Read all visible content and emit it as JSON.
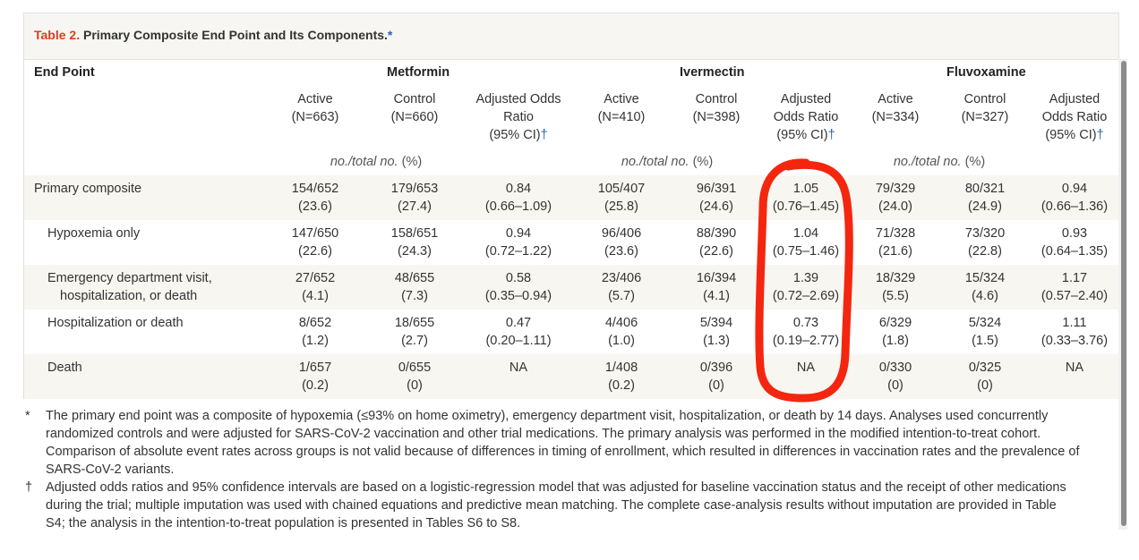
{
  "table": {
    "title_number": "Table 2.",
    "title_text": "Primary Composite End Point and Its Components.",
    "title_mark": "*",
    "endpoint_header": "End Point",
    "groups": [
      "Metformin",
      "Ivermectin",
      "Fluvoxamine"
    ],
    "subheaders": [
      [
        "Active",
        "(N=663)"
      ],
      [
        "Control",
        "(N=660)"
      ],
      [
        "Adjusted Odds",
        "Ratio",
        "(95% CI)"
      ],
      [
        "Active",
        "(N=410)"
      ],
      [
        "Control",
        "(N=398)"
      ],
      [
        "Adjusted",
        "Odds Ratio",
        "(95% CI)"
      ],
      [
        "Active",
        "(N=334)"
      ],
      [
        "Control",
        "(N=327)"
      ],
      [
        "Adjusted",
        "Odds Ratio",
        "(95% CI)"
      ]
    ],
    "dagger": "†",
    "units_label": "no./total no.",
    "units_pct": "(%)",
    "rows": [
      {
        "label": [
          "Primary composite"
        ],
        "cells": [
          [
            "154/652",
            "(23.6)"
          ],
          [
            "179/653",
            "(27.4)"
          ],
          [
            "0.84",
            "(0.66–1.09)"
          ],
          [
            "105/407",
            "(25.8)"
          ],
          [
            "96/391",
            "(24.6)"
          ],
          [
            "1.05",
            "(0.76–1.45)"
          ],
          [
            "79/329",
            "(24.0)"
          ],
          [
            "80/321",
            "(24.9)"
          ],
          [
            "0.94",
            "(0.66–1.36)"
          ]
        ]
      },
      {
        "label": [
          "Hypoxemia only"
        ],
        "cells": [
          [
            "147/650",
            "(22.6)"
          ],
          [
            "158/651",
            "(24.3)"
          ],
          [
            "0.94",
            "(0.72–1.22)"
          ],
          [
            "96/406",
            "(23.6)"
          ],
          [
            "88/390",
            "(22.6)"
          ],
          [
            "1.04",
            "(0.75–1.46)"
          ],
          [
            "71/328",
            "(21.6)"
          ],
          [
            "73/320",
            "(22.8)"
          ],
          [
            "0.93",
            "(0.64–1.35)"
          ]
        ]
      },
      {
        "label": [
          "Emergency department visit,",
          "hospitalization, or death"
        ],
        "cells": [
          [
            "27/652",
            "(4.1)"
          ],
          [
            "48/655",
            "(7.3)"
          ],
          [
            "0.58",
            "(0.35–0.94)"
          ],
          [
            "23/406",
            "(5.7)"
          ],
          [
            "16/394",
            "(4.1)"
          ],
          [
            "1.39",
            "(0.72–2.69)"
          ],
          [
            "18/329",
            "(5.5)"
          ],
          [
            "15/324",
            "(4.6)"
          ],
          [
            "1.17",
            "(0.57–2.40)"
          ]
        ]
      },
      {
        "label": [
          "Hospitalization or death"
        ],
        "cells": [
          [
            "8/652",
            "(1.2)"
          ],
          [
            "18/655",
            "(2.7)"
          ],
          [
            "0.47",
            "(0.20–1.11)"
          ],
          [
            "4/406",
            "(1.0)"
          ],
          [
            "5/394",
            "(1.3)"
          ],
          [
            "0.73",
            "(0.19–2.77)"
          ],
          [
            "6/329",
            "(1.8)"
          ],
          [
            "5/324",
            "(1.5)"
          ],
          [
            "1.11",
            "(0.33–3.76)"
          ]
        ]
      },
      {
        "label": [
          "Death"
        ],
        "cells": [
          [
            "1/657",
            "(0.2)"
          ],
          [
            "0/655",
            "(0)"
          ],
          [
            "NA",
            ""
          ],
          [
            "1/408",
            "(0.2)"
          ],
          [
            "0/396",
            "(0)"
          ],
          [
            "NA",
            ""
          ],
          [
            "0/330",
            "(0)"
          ],
          [
            "0/325",
            "(0)"
          ],
          [
            "NA",
            ""
          ]
        ]
      }
    ]
  },
  "footnotes": [
    {
      "symbol": "*",
      "lines": [
        "The primary end point was a composite of hypoxemia (≤93% on home oximetry), emergency department visit, hospitalization, or death by 14 days. Analyses used concurrently",
        "randomized controls and were adjusted for SARS-CoV-2 vaccination and other trial medications. The primary analysis was performed in the modified intention-to-treat cohort.",
        "Comparison of absolute event rates across groups is not valid because of differences in timing of enrollment, which resulted in differences in vaccination rates and the prevalence of",
        "SARS-CoV-2 variants."
      ]
    },
    {
      "symbol": "†",
      "lines": [
        "Adjusted odds ratios and 95% confidence intervals are based on a logistic-regression model that was adjusted for baseline vaccination status and the receipt of other medications",
        "during the trial; multiple imputation was used with chained equations and predictive mean matching. The complete case-analysis results without imputation are provided in Table",
        "S4; the analysis in the intention-to-treat population is presented in Tables S6 to S8."
      ]
    }
  ],
  "annotation_color": "#f4260f",
  "accent_colors": {
    "table_number": "#d9401f",
    "marks": "#2a64b0"
  }
}
